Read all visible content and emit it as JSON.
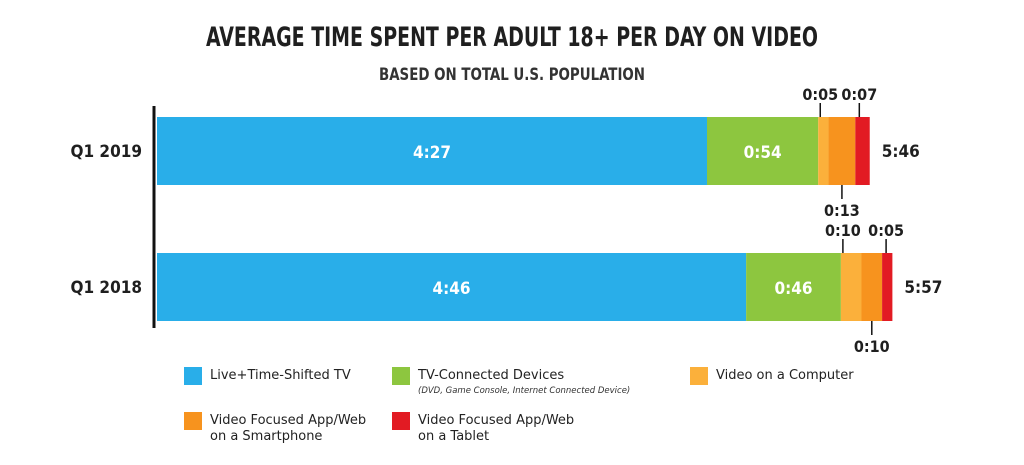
{
  "chart_data": {
    "type": "bar",
    "orientation": "horizontal",
    "stacked": true,
    "title": "AVERAGE TIME SPENT PER ADULT 18+ PER DAY ON VIDEO",
    "subtitle": "BASED ON TOTAL U.S. POPULATION",
    "categories": [
      "Q1 2019",
      "Q1 2018"
    ],
    "totals": [
      "5:46",
      "5:57"
    ],
    "series": [
      {
        "name": "Live+Time-Shifted TV",
        "color": "#29aee9",
        "values": [
          "4:27",
          "4:46"
        ]
      },
      {
        "name": "TV-Connected Devices",
        "subtitle": "(DVD, Game Console, Internet Connected Device)",
        "color": "#8dc63f",
        "values": [
          "0:54",
          "0:46"
        ]
      },
      {
        "name": "Video on a Computer",
        "color": "#fbb03b",
        "values": [
          "0:05",
          "0:10"
        ]
      },
      {
        "name": "Video Focused App/Web on a Smartphone",
        "color": "#f7931e",
        "values": [
          "0:13",
          "0:10"
        ]
      },
      {
        "name": "Video Focused App/Web on a Tablet",
        "color": "#e21b23",
        "values": [
          "0:07",
          "0:05"
        ]
      }
    ],
    "legend_position": "bottom",
    "grid": false
  }
}
